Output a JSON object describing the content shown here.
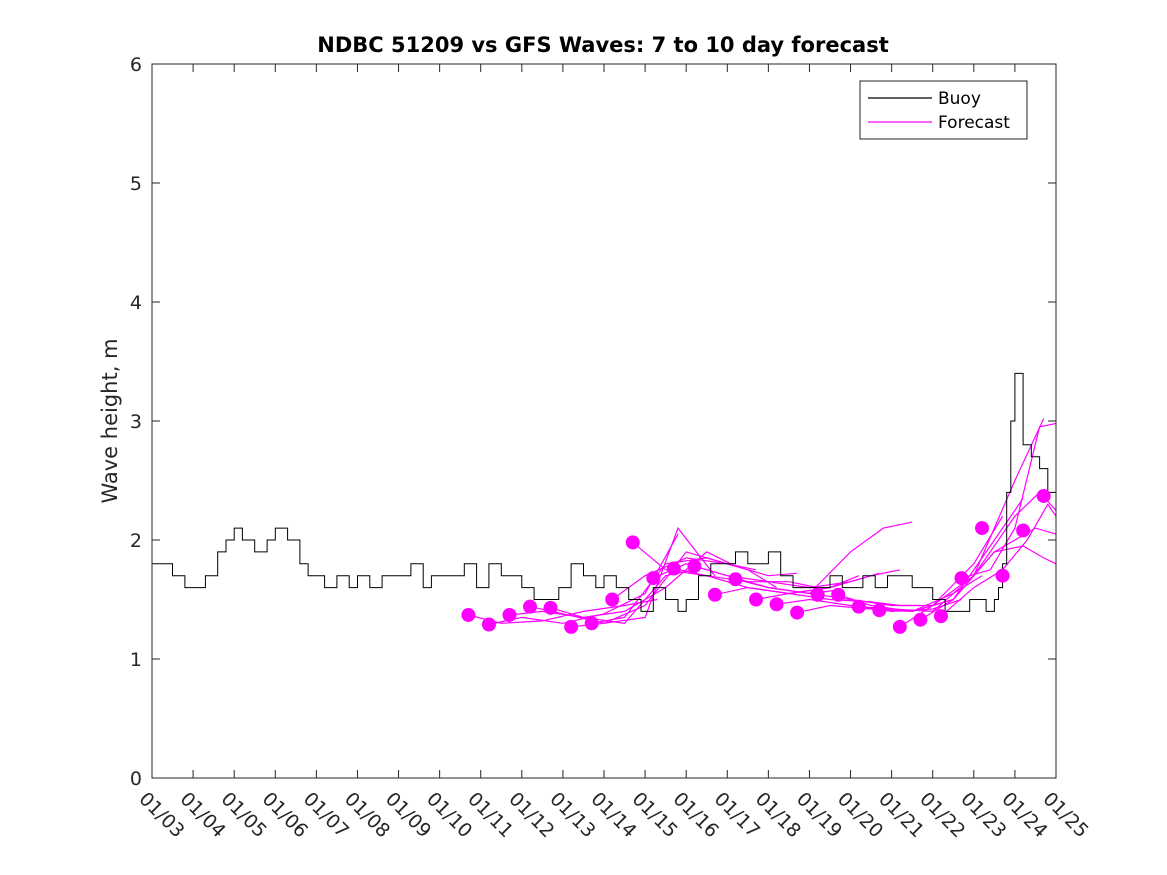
{
  "chart_data": {
    "type": "line",
    "title": "NDBC 51209 vs GFS Waves: 7 to 10 day forecast",
    "xlabel": "",
    "ylabel": "Wave height, m",
    "ylim": [
      0,
      6
    ],
    "xlim_days": [
      0,
      22
    ],
    "x_tick_labels": [
      "01/03",
      "01/04",
      "01/05",
      "01/06",
      "01/07",
      "01/08",
      "01/09",
      "01/10",
      "01/11",
      "01/12",
      "01/13",
      "01/14",
      "01/15",
      "01/16",
      "01/17",
      "01/18",
      "01/19",
      "01/20",
      "01/21",
      "01/22",
      "01/23",
      "01/24",
      "01/25"
    ],
    "y_ticks": [
      0,
      1,
      2,
      3,
      4,
      5,
      6
    ],
    "legend": {
      "position": "top-right",
      "entries": [
        {
          "label": "Buoy",
          "color": "#000000"
        },
        {
          "label": "Forecast",
          "color": "#ff00ff"
        }
      ]
    },
    "colors": {
      "buoy": "#000000",
      "forecast": "#ff00ff"
    },
    "series": [
      {
        "name": "Buoy",
        "color": "#000000",
        "x_days": [
          0,
          0.2,
          0.5,
          0.8,
          1.0,
          1.3,
          1.6,
          1.8,
          2.0,
          2.2,
          2.5,
          2.8,
          3.0,
          3.3,
          3.6,
          3.8,
          4.0,
          4.2,
          4.5,
          4.8,
          5.0,
          5.3,
          5.6,
          5.8,
          6.0,
          6.3,
          6.6,
          6.8,
          7.0,
          7.3,
          7.6,
          7.9,
          8.2,
          8.5,
          8.8,
          9.0,
          9.3,
          9.6,
          9.9,
          10.2,
          10.5,
          10.8,
          11.0,
          11.3,
          11.6,
          11.9,
          12.2,
          12.5,
          12.8,
          13.0,
          13.3,
          13.6,
          13.9,
          14.2,
          14.5,
          14.8,
          15.0,
          15.3,
          15.6,
          15.9,
          16.2,
          16.5,
          16.8,
          17.0,
          17.3,
          17.6,
          17.9,
          18.2,
          18.5,
          18.8,
          19.0,
          19.3,
          19.6,
          19.9,
          20.1,
          20.3,
          20.5,
          20.6,
          20.7,
          20.8,
          20.9,
          21.0,
          21.2,
          21.4,
          21.6,
          21.8,
          22.0
        ],
        "values": [
          1.8,
          1.8,
          1.7,
          1.6,
          1.6,
          1.7,
          1.9,
          2.0,
          2.1,
          2.0,
          1.9,
          2.0,
          2.1,
          2.0,
          1.8,
          1.7,
          1.7,
          1.6,
          1.7,
          1.6,
          1.7,
          1.6,
          1.7,
          1.7,
          1.7,
          1.8,
          1.6,
          1.7,
          1.7,
          1.7,
          1.8,
          1.6,
          1.8,
          1.7,
          1.7,
          1.6,
          1.5,
          1.5,
          1.6,
          1.8,
          1.7,
          1.6,
          1.7,
          1.6,
          1.5,
          1.4,
          1.6,
          1.5,
          1.4,
          1.5,
          1.7,
          1.8,
          1.8,
          1.9,
          1.8,
          1.8,
          1.9,
          1.7,
          1.6,
          1.6,
          1.6,
          1.7,
          1.6,
          1.6,
          1.7,
          1.6,
          1.7,
          1.7,
          1.6,
          1.6,
          1.5,
          1.4,
          1.4,
          1.5,
          1.5,
          1.4,
          1.5,
          1.6,
          1.8,
          2.4,
          3.0,
          3.4,
          2.8,
          2.7,
          2.6,
          2.4,
          2.3
        ]
      },
      {
        "name": "Forecast",
        "color": "#ff00ff",
        "runs": [
          {
            "x_days": [
              7.7,
              8.5,
              9.5,
              10.5,
              11.5,
              12.3
            ],
            "values": [
              1.37,
              1.3,
              1.32,
              1.4,
              1.45,
              1.5
            ]
          },
          {
            "x_days": [
              8.2,
              9.0,
              10.0,
              11.0,
              12.0,
              12.8
            ],
            "values": [
              1.29,
              1.35,
              1.3,
              1.38,
              1.55,
              2.05
            ]
          },
          {
            "x_days": [
              8.7,
              9.5,
              10.5,
              11.5,
              12.5,
              13.2
            ],
            "values": [
              1.37,
              1.4,
              1.35,
              1.3,
              1.7,
              1.75
            ]
          },
          {
            "x_days": [
              9.2,
              10.0,
              11.0,
              12.0,
              12.8,
              13.7
            ],
            "values": [
              1.44,
              1.38,
              1.3,
              1.35,
              2.1,
              1.7
            ]
          },
          {
            "x_days": [
              9.7,
              10.5,
              11.5,
              12.5,
              13.5,
              14.2
            ],
            "values": [
              1.43,
              1.35,
              1.4,
              1.6,
              1.9,
              1.78
            ]
          },
          {
            "x_days": [
              10.2,
              11.0,
              12.0,
              13.0,
              14.0,
              14.7
            ],
            "values": [
              1.27,
              1.3,
              1.45,
              1.9,
              1.8,
              1.75
            ]
          },
          {
            "x_days": [
              10.7,
              11.5,
              12.5,
              13.5,
              14.5,
              15.2
            ],
            "values": [
              1.3,
              1.35,
              1.8,
              1.85,
              1.75,
              1.6
            ]
          },
          {
            "x_days": [
              11.2,
              12.0,
              13.0,
              14.0,
              15.0,
              15.7
            ],
            "values": [
              1.5,
              1.7,
              1.85,
              1.8,
              1.7,
              1.72
            ]
          },
          {
            "x_days": [
              11.7,
              12.5,
              13.5,
              14.5,
              15.5,
              16.2
            ],
            "values": [
              1.98,
              1.75,
              1.7,
              1.65,
              1.65,
              1.6
            ]
          },
          {
            "x_days": [
              12.2,
              13.0,
              14.0,
              15.0,
              16.0,
              16.7
            ],
            "values": [
              1.68,
              1.8,
              1.7,
              1.6,
              1.55,
              1.58
            ]
          },
          {
            "x_days": [
              12.7,
              13.5,
              14.5,
              15.5,
              16.5,
              17.2
            ],
            "values": [
              1.76,
              1.7,
              1.6,
              1.55,
              1.6,
              1.7
            ]
          },
          {
            "x_days": [
              13.2,
              14.0,
              15.0,
              16.0,
              17.0,
              17.7
            ],
            "values": [
              1.78,
              1.7,
              1.65,
              1.6,
              1.65,
              1.72
            ]
          },
          {
            "x_days": [
              13.7,
              14.5,
              15.5,
              16.5,
              17.5,
              18.2
            ],
            "values": [
              1.54,
              1.6,
              1.55,
              1.6,
              1.7,
              1.75
            ]
          },
          {
            "x_days": [
              14.2,
              15.0,
              16.0,
              17.0,
              17.8,
              18.5
            ],
            "values": [
              1.67,
              1.6,
              1.55,
              1.9,
              2.1,
              2.15
            ]
          },
          {
            "x_days": [
              14.7,
              15.5,
              16.5,
              17.5,
              18.2,
              18.7
            ],
            "values": [
              1.5,
              1.55,
              1.5,
              1.48,
              1.45,
              1.45
            ]
          },
          {
            "x_days": [
              15.2,
              16.0,
              17.0,
              18.0,
              19.0,
              19.7
            ],
            "values": [
              1.46,
              1.5,
              1.45,
              1.4,
              1.42,
              1.5
            ]
          },
          {
            "x_days": [
              15.7,
              16.5,
              17.5,
              18.5,
              19.5,
              20.2
            ],
            "values": [
              1.39,
              1.45,
              1.42,
              1.4,
              1.55,
              1.7
            ]
          },
          {
            "x_days": [
              16.2,
              17.0,
              18.0,
              19.0,
              20.0,
              20.7
            ],
            "values": [
              1.54,
              1.5,
              1.45,
              1.45,
              1.8,
              2.2
            ]
          },
          {
            "x_days": [
              16.7,
              17.5,
              18.5,
              19.5,
              20.5,
              21.2
            ],
            "values": [
              1.54,
              1.45,
              1.4,
              1.5,
              2.0,
              2.35
            ]
          },
          {
            "x_days": [
              17.2,
              18.0,
              19.0,
              20.0,
              21.0,
              21.7
            ],
            "values": [
              1.44,
              1.42,
              1.4,
              1.7,
              2.5,
              3.02
            ]
          },
          {
            "x_days": [
              17.7,
              18.5,
              19.5,
              20.5,
              21.5,
              22.0
            ],
            "values": [
              1.41,
              1.4,
              1.5,
              1.9,
              2.1,
              2.05
            ]
          },
          {
            "x_days": [
              18.2,
              19.0,
              20.0,
              21.0,
              21.6,
              22.0
            ],
            "values": [
              1.27,
              1.45,
              1.7,
              2.2,
              2.4,
              2.25
            ]
          },
          {
            "x_days": [
              18.7,
              19.5,
              20.5,
              21.2,
              21.7,
              22.0
            ],
            "values": [
              1.33,
              1.5,
              1.9,
              1.95,
              1.85,
              1.8
            ]
          },
          {
            "x_days": [
              19.2,
              20.0,
              20.7,
              21.3,
              21.8,
              22.0
            ],
            "values": [
              1.36,
              1.6,
              1.75,
              2.0,
              2.3,
              2.2
            ]
          },
          {
            "x_days": [
              19.7,
              20.4,
              21.0,
              21.6,
              22.0
            ],
            "values": [
              1.68,
              1.75,
              2.1,
              2.95,
              2.98
            ]
          }
        ],
        "markers": {
          "x_days": [
            7.7,
            8.2,
            8.7,
            9.2,
            9.7,
            10.2,
            10.7,
            11.2,
            11.7,
            12.2,
            12.7,
            13.2,
            13.7,
            14.2,
            14.7,
            15.2,
            15.7,
            16.2,
            16.7,
            17.2,
            17.7,
            18.2,
            18.7,
            19.2,
            19.7,
            20.2,
            20.7,
            21.2,
            21.7
          ],
          "values": [
            1.37,
            1.29,
            1.37,
            1.44,
            1.43,
            1.27,
            1.3,
            1.5,
            1.98,
            1.68,
            1.76,
            1.78,
            1.54,
            1.67,
            1.5,
            1.46,
            1.39,
            1.54,
            1.54,
            1.44,
            1.41,
            1.27,
            1.33,
            1.36,
            1.68,
            2.1,
            1.7,
            2.08,
            2.37
          ]
        }
      }
    ]
  }
}
